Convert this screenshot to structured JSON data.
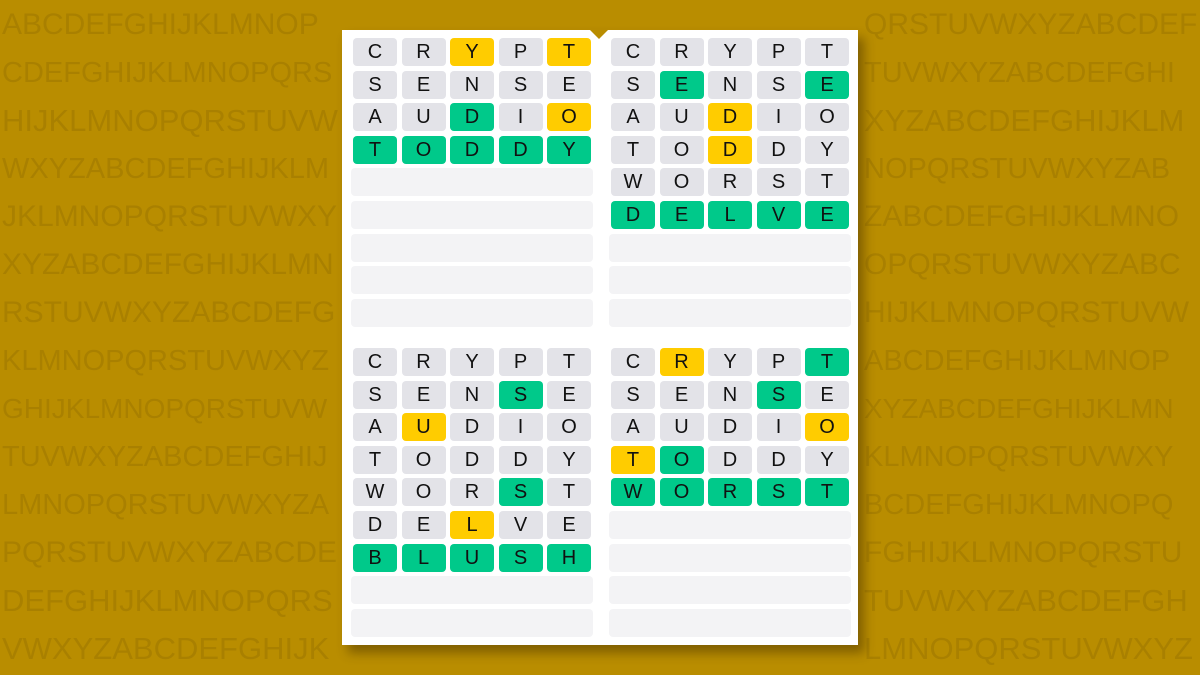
{
  "background_letters": [
    "ABCDEFGHIJKLMNOPQRSTUVWXYZABCDEF",
    "CDEFGHIJKLMNOPQRSTUVWXYZABCDEFGHI",
    "HIJKLMNOPQRSTUVWXYZABCDEFGHIJKLM",
    "WXYZABCDEFGHIJKLMNOPQRSTUVWXYZAB",
    "JKLMNOPQRSTUVWXYZABCDEFGHIJKLMNO",
    "XYZABCDEFGHIJKLMNOPQRSTUVWXYZABC",
    "RSTUVWXYZABCDEFGHIJKLMNOPQRSTUVW",
    "KLMNOPQRSTUVWXYZABCDEFGHIJKLMNOP",
    "GHIJKLMNOPQRSTUVWXYZABCDEFGHIJKLMN",
    "TUVWXYZABCDEFGHIJKLMNOPQRSTUVWXY",
    "LMNOPQRSTUVWXYZABCDEFGHIJKLMNOPQ",
    "PQRSTUVWXYZABCDEFGHIJKLMNOPQRSTU",
    "DEFGHIJKLMNOPQRSTUVWXYZABCDEFGH",
    "VWXYZABCDEFGHIJKLMNOPQRSTUVWXYZ"
  ],
  "colors": {
    "background": "#b98d00",
    "green": "#00c98a",
    "yellow": "#ffcc00",
    "absent": "#e3e3e8",
    "empty": "#f3f3f5"
  },
  "rows_per_board": 9,
  "boards": [
    {
      "guesses": [
        {
          "word": "CRYPT",
          "marks": "..Y.Y"
        },
        {
          "word": "SENSE",
          "marks": "....."
        },
        {
          "word": "AUDIO",
          "marks": "..G.Y"
        },
        {
          "word": "TODDY",
          "marks": "GGGGG"
        }
      ]
    },
    {
      "guesses": [
        {
          "word": "CRYPT",
          "marks": "....."
        },
        {
          "word": "SENSE",
          "marks": ".G..G"
        },
        {
          "word": "AUDIO",
          "marks": "..Y.."
        },
        {
          "word": "TODDY",
          "marks": "..Y.."
        },
        {
          "word": "WORST",
          "marks": "....."
        },
        {
          "word": "DELVE",
          "marks": "GGGGG"
        }
      ]
    },
    {
      "guesses": [
        {
          "word": "CRYPT",
          "marks": "....."
        },
        {
          "word": "SENSE",
          "marks": "...G."
        },
        {
          "word": "AUDIO",
          "marks": ".Y..."
        },
        {
          "word": "TODDY",
          "marks": "....."
        },
        {
          "word": "WORST",
          "marks": "...G."
        },
        {
          "word": "DELVE",
          "marks": "..Y.."
        },
        {
          "word": "BLUSH",
          "marks": "GGGGG"
        }
      ]
    },
    {
      "guesses": [
        {
          "word": "CRYPT",
          "marks": ".Y..G"
        },
        {
          "word": "SENSE",
          "marks": "...G."
        },
        {
          "word": "AUDIO",
          "marks": "....Y"
        },
        {
          "word": "TODDY",
          "marks": "YG..."
        },
        {
          "word": "WORST",
          "marks": "GGGGG"
        }
      ]
    }
  ]
}
